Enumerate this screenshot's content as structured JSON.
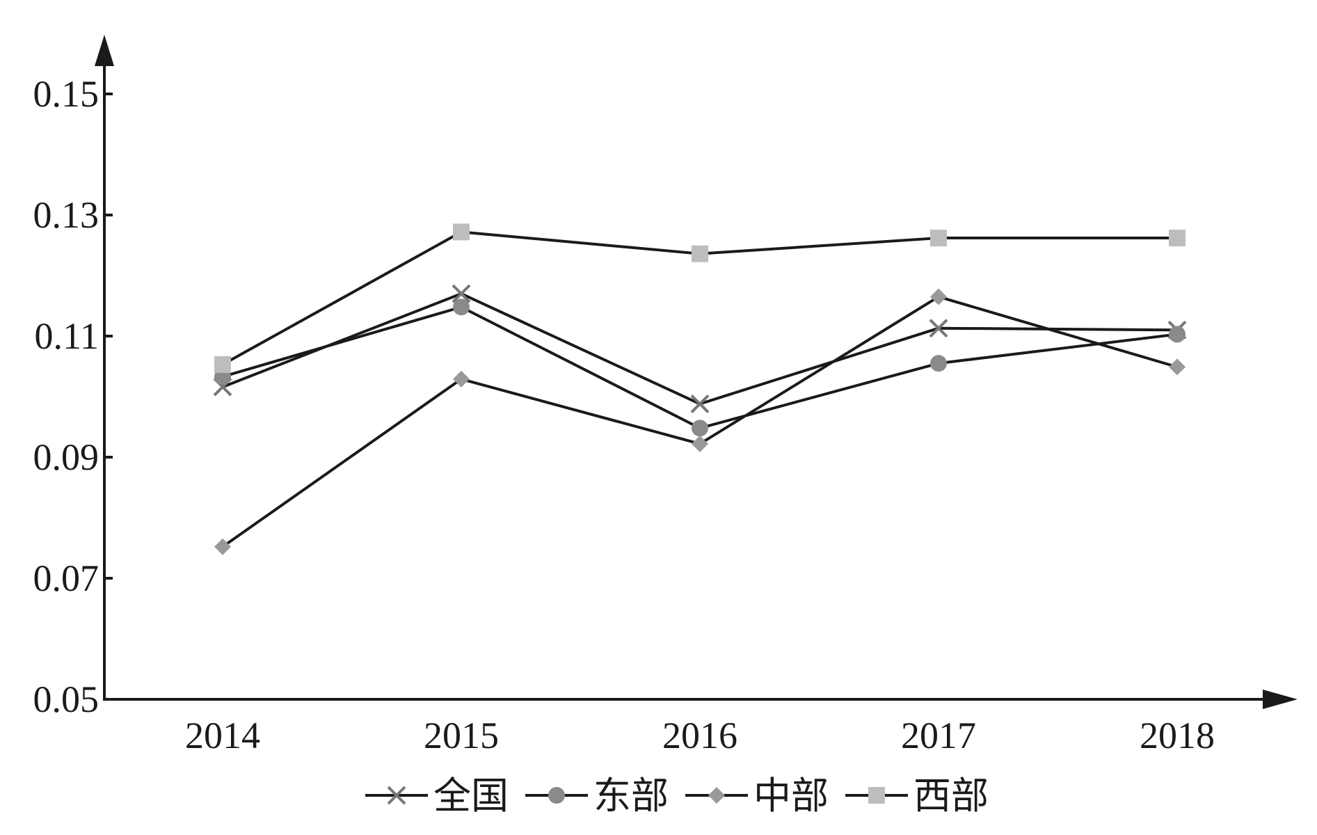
{
  "chart_data": {
    "type": "line",
    "title": "",
    "xlabel": "",
    "ylabel": "",
    "categories": [
      "2014",
      "2015",
      "2016",
      "2017",
      "2018"
    ],
    "ylim": [
      0.05,
      0.15
    ],
    "yticks": [
      "0.15",
      "0.13",
      "0.11",
      "0.09",
      "0.07",
      "0.05"
    ],
    "ytick_values": [
      0.15,
      0.13,
      0.11,
      0.09,
      0.07,
      0.05
    ],
    "grid": false,
    "legend_position": "bottom",
    "line_color": "#1a1a1a",
    "series": [
      {
        "name": "全国",
        "marker": "x",
        "marker_color": "#777777",
        "values": [
          0.1016,
          0.117,
          0.0988,
          0.1113,
          0.111
        ]
      },
      {
        "name": "东部",
        "marker": "circle",
        "marker_color": "#8a8a8a",
        "values": [
          0.1033,
          0.1148,
          0.0948,
          0.1055,
          0.1103
        ]
      },
      {
        "name": "中部",
        "marker": "diamond",
        "marker_color": "#999999",
        "values": [
          0.0752,
          0.1029,
          0.0922,
          0.1165,
          0.1049
        ]
      },
      {
        "name": "西部",
        "marker": "square",
        "marker_color": "#bdbdbd",
        "values": [
          0.1053,
          0.1272,
          0.1236,
          0.1262,
          0.1262
        ]
      }
    ]
  }
}
